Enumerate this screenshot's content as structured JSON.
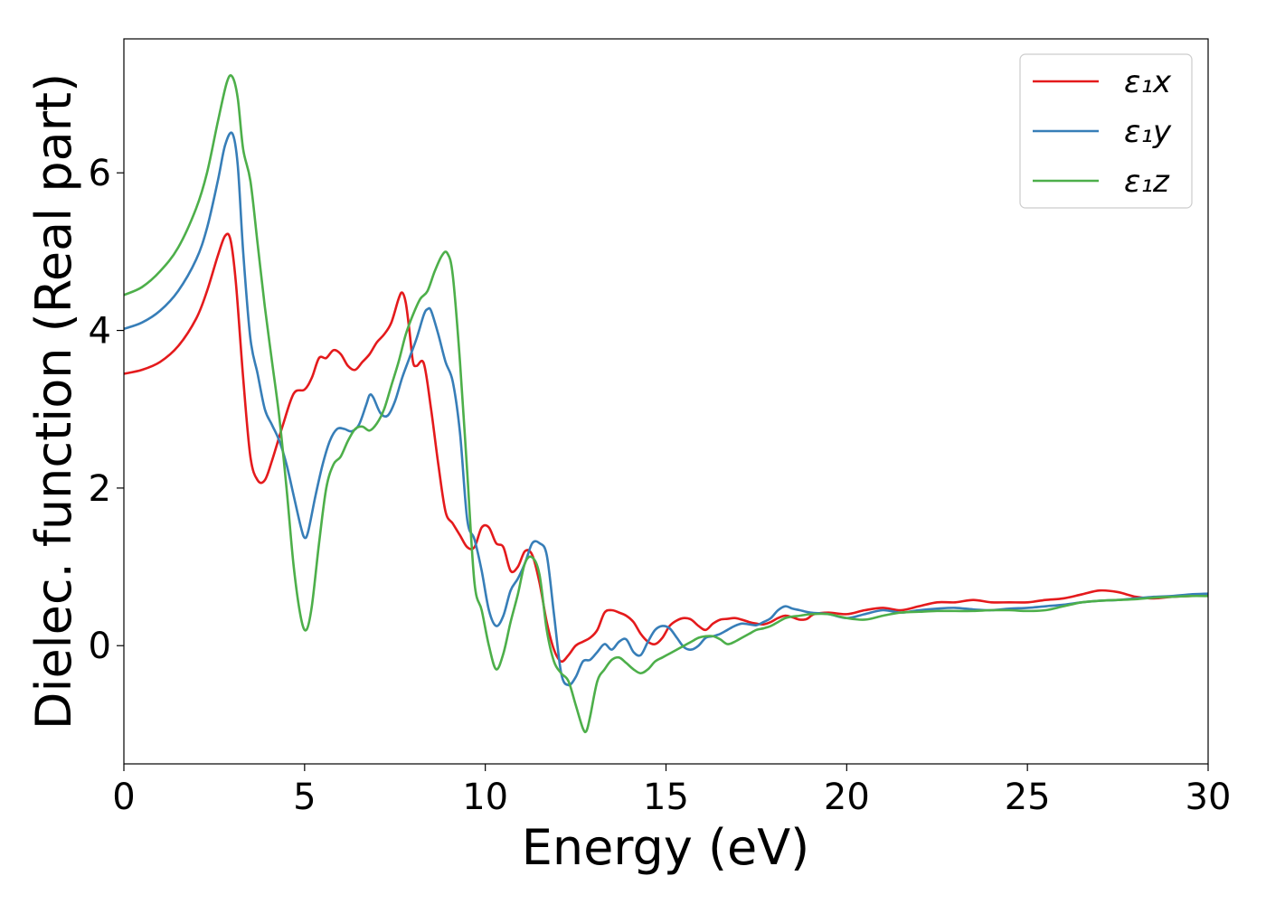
{
  "chart_data": {
    "type": "line",
    "title": "",
    "xlabel": "Energy (eV)",
    "ylabel": "Dielec. function (Real part)",
    "xlim": [
      0,
      30
    ],
    "ylim": [
      -1.5,
      7.7
    ],
    "xticks": [
      0,
      5,
      10,
      15,
      20,
      25,
      30
    ],
    "yticks": [
      0,
      2,
      4,
      6
    ],
    "grid": false,
    "legend_position": "top-right",
    "series": [
      {
        "name": "ε₁x",
        "color": "#e41a1c",
        "x": [
          0,
          0.5,
          1,
          1.5,
          2,
          2.3,
          2.6,
          2.8,
          2.95,
          3.1,
          3.3,
          3.5,
          3.7,
          3.9,
          4.1,
          4.4,
          4.7,
          5.0,
          5.2,
          5.4,
          5.6,
          5.8,
          6.0,
          6.2,
          6.4,
          6.6,
          6.8,
          7.0,
          7.2,
          7.4,
          7.6,
          7.7,
          7.8,
          7.9,
          8.0,
          8.1,
          8.3,
          8.5,
          8.7,
          8.9,
          9.1,
          9.3,
          9.5,
          9.7,
          9.9,
          10.1,
          10.3,
          10.5,
          10.7,
          10.9,
          11.1,
          11.3,
          11.5,
          11.7,
          11.9,
          12.1,
          12.3,
          12.5,
          12.7,
          12.9,
          13.1,
          13.3,
          13.5,
          13.7,
          13.9,
          14.1,
          14.3,
          14.5,
          14.7,
          14.9,
          15.1,
          15.3,
          15.5,
          15.7,
          15.9,
          16.1,
          16.3,
          16.5,
          16.7,
          16.9,
          17.1,
          17.3,
          17.5,
          17.7,
          17.9,
          18.1,
          18.3,
          18.5,
          18.7,
          18.9,
          19.1,
          19.5,
          20.0,
          20.5,
          21.0,
          21.5,
          22.0,
          22.5,
          23.0,
          23.5,
          24.0,
          24.5,
          25.0,
          25.5,
          26.0,
          26.5,
          27.0,
          27.5,
          28.0,
          28.5,
          29.0,
          29.5,
          30.0
        ],
        "y": [
          3.45,
          3.5,
          3.6,
          3.8,
          4.15,
          4.5,
          4.95,
          5.2,
          5.15,
          4.6,
          3.4,
          2.4,
          2.1,
          2.1,
          2.35,
          2.8,
          3.2,
          3.25,
          3.4,
          3.65,
          3.65,
          3.75,
          3.7,
          3.55,
          3.5,
          3.6,
          3.7,
          3.85,
          3.95,
          4.1,
          4.4,
          4.48,
          4.35,
          4.0,
          3.6,
          3.55,
          3.58,
          3.0,
          2.3,
          1.7,
          1.55,
          1.4,
          1.25,
          1.25,
          1.5,
          1.5,
          1.3,
          1.25,
          0.95,
          1.0,
          1.2,
          1.15,
          0.8,
          0.3,
          -0.05,
          -0.2,
          -0.12,
          0.0,
          0.05,
          0.1,
          0.2,
          0.42,
          0.45,
          0.42,
          0.38,
          0.3,
          0.15,
          0.05,
          0.02,
          0.1,
          0.25,
          0.32,
          0.35,
          0.33,
          0.25,
          0.2,
          0.28,
          0.33,
          0.34,
          0.35,
          0.33,
          0.3,
          0.28,
          0.27,
          0.3,
          0.35,
          0.38,
          0.36,
          0.33,
          0.34,
          0.4,
          0.42,
          0.4,
          0.45,
          0.48,
          0.45,
          0.5,
          0.55,
          0.55,
          0.58,
          0.55,
          0.55,
          0.55,
          0.58,
          0.6,
          0.65,
          0.7,
          0.68,
          0.62,
          0.6,
          0.62,
          0.63,
          0.64
        ]
      },
      {
        "name": "ε₁y",
        "color": "#377eb8",
        "x": [
          0,
          0.5,
          1,
          1.5,
          2,
          2.3,
          2.6,
          2.8,
          3.0,
          3.15,
          3.3,
          3.5,
          3.7,
          3.9,
          4.1,
          4.3,
          4.5,
          4.7,
          4.9,
          5.0,
          5.1,
          5.3,
          5.5,
          5.7,
          5.9,
          6.1,
          6.3,
          6.5,
          6.7,
          6.8,
          6.9,
          7.1,
          7.3,
          7.5,
          7.7,
          7.9,
          8.1,
          8.3,
          8.4,
          8.5,
          8.7,
          8.9,
          9.1,
          9.3,
          9.5,
          9.7,
          9.9,
          10.1,
          10.3,
          10.5,
          10.7,
          10.9,
          11.1,
          11.3,
          11.5,
          11.7,
          11.9,
          12.1,
          12.3,
          12.5,
          12.7,
          12.9,
          13.1,
          13.3,
          13.5,
          13.7,
          13.9,
          14.1,
          14.3,
          14.5,
          14.7,
          14.9,
          15.1,
          15.3,
          15.5,
          15.7,
          15.9,
          16.1,
          16.3,
          16.5,
          16.7,
          16.9,
          17.1,
          17.3,
          17.5,
          17.7,
          17.9,
          18.1,
          18.3,
          18.5,
          18.7,
          19.0,
          19.5,
          20.0,
          20.5,
          21.0,
          21.5,
          22.0,
          22.5,
          23.0,
          23.5,
          24.0,
          24.5,
          25.0,
          25.5,
          26.0,
          26.5,
          27.0,
          27.5,
          28.0,
          28.5,
          29.0,
          29.5,
          30.0
        ],
        "y": [
          4.02,
          4.1,
          4.25,
          4.5,
          4.9,
          5.3,
          5.9,
          6.35,
          6.5,
          6.1,
          5.0,
          3.9,
          3.45,
          3.0,
          2.8,
          2.6,
          2.3,
          1.9,
          1.5,
          1.37,
          1.45,
          1.9,
          2.3,
          2.6,
          2.75,
          2.75,
          2.72,
          2.8,
          3.05,
          3.18,
          3.15,
          2.95,
          2.92,
          3.1,
          3.4,
          3.65,
          3.9,
          4.2,
          4.27,
          4.25,
          3.95,
          3.6,
          3.35,
          2.7,
          1.6,
          1.35,
          0.95,
          0.45,
          0.25,
          0.38,
          0.7,
          0.85,
          1.05,
          1.3,
          1.3,
          1.15,
          0.4,
          -0.35,
          -0.5,
          -0.4,
          -0.2,
          -0.18,
          -0.08,
          0.02,
          -0.05,
          0.05,
          0.08,
          -0.08,
          -0.12,
          0.05,
          0.2,
          0.25,
          0.22,
          0.1,
          -0.02,
          -0.05,
          0.0,
          0.1,
          0.12,
          0.15,
          0.2,
          0.25,
          0.28,
          0.27,
          0.26,
          0.3,
          0.35,
          0.45,
          0.5,
          0.47,
          0.45,
          0.42,
          0.4,
          0.35,
          0.4,
          0.45,
          0.42,
          0.45,
          0.47,
          0.48,
          0.46,
          0.45,
          0.47,
          0.48,
          0.5,
          0.52,
          0.55,
          0.57,
          0.58,
          0.6,
          0.62,
          0.63,
          0.65,
          0.66
        ]
      },
      {
        "name": "ε₁z",
        "color": "#4daf4a",
        "x": [
          0,
          0.5,
          1,
          1.5,
          2,
          2.3,
          2.6,
          2.85,
          3.0,
          3.15,
          3.3,
          3.5,
          3.7,
          3.9,
          4.1,
          4.3,
          4.5,
          4.7,
          4.9,
          5.05,
          5.2,
          5.4,
          5.6,
          5.8,
          6.0,
          6.2,
          6.4,
          6.6,
          6.8,
          7.0,
          7.2,
          7.4,
          7.6,
          7.8,
          8.0,
          8.2,
          8.4,
          8.6,
          8.8,
          8.95,
          9.1,
          9.3,
          9.5,
          9.7,
          9.9,
          10.1,
          10.3,
          10.5,
          10.7,
          10.9,
          11.1,
          11.3,
          11.5,
          11.7,
          11.9,
          12.1,
          12.3,
          12.5,
          12.7,
          12.8,
          12.9,
          13.1,
          13.3,
          13.5,
          13.7,
          13.9,
          14.1,
          14.3,
          14.5,
          14.7,
          14.9,
          15.1,
          15.3,
          15.5,
          15.7,
          15.9,
          16.1,
          16.3,
          16.5,
          16.7,
          16.9,
          17.1,
          17.3,
          17.5,
          17.7,
          17.9,
          18.1,
          18.3,
          18.5,
          18.7,
          19.0,
          19.5,
          20.0,
          20.5,
          21.0,
          21.5,
          22.0,
          22.5,
          23.0,
          23.5,
          24.0,
          24.5,
          25.0,
          25.5,
          26.0,
          26.5,
          27.0,
          27.5,
          28.0,
          28.5,
          29.0,
          29.5,
          30.0
        ],
        "y": [
          4.45,
          4.55,
          4.75,
          5.05,
          5.55,
          6.0,
          6.65,
          7.15,
          7.22,
          6.95,
          6.3,
          5.9,
          5.1,
          4.3,
          3.6,
          2.9,
          2.0,
          1.0,
          0.35,
          0.2,
          0.5,
          1.3,
          2.0,
          2.3,
          2.4,
          2.6,
          2.75,
          2.78,
          2.73,
          2.82,
          3.0,
          3.3,
          3.6,
          3.95,
          4.2,
          4.4,
          4.5,
          4.75,
          4.95,
          4.98,
          4.7,
          3.6,
          2.2,
          0.8,
          0.45,
          0.0,
          -0.3,
          -0.1,
          0.3,
          0.65,
          1.05,
          1.12,
          0.9,
          0.2,
          -0.2,
          -0.35,
          -0.45,
          -0.75,
          -1.05,
          -1.08,
          -0.9,
          -0.45,
          -0.3,
          -0.18,
          -0.15,
          -0.22,
          -0.3,
          -0.35,
          -0.3,
          -0.2,
          -0.15,
          -0.1,
          -0.05,
          0.0,
          0.05,
          0.1,
          0.12,
          0.12,
          0.08,
          0.02,
          0.05,
          0.1,
          0.15,
          0.2,
          0.22,
          0.25,
          0.3,
          0.35,
          0.37,
          0.38,
          0.4,
          0.4,
          0.35,
          0.33,
          0.38,
          0.42,
          0.43,
          0.44,
          0.44,
          0.44,
          0.45,
          0.45,
          0.44,
          0.45,
          0.5,
          0.55,
          0.57,
          0.58,
          0.59,
          0.61,
          0.62,
          0.63,
          0.63
        ]
      }
    ]
  }
}
